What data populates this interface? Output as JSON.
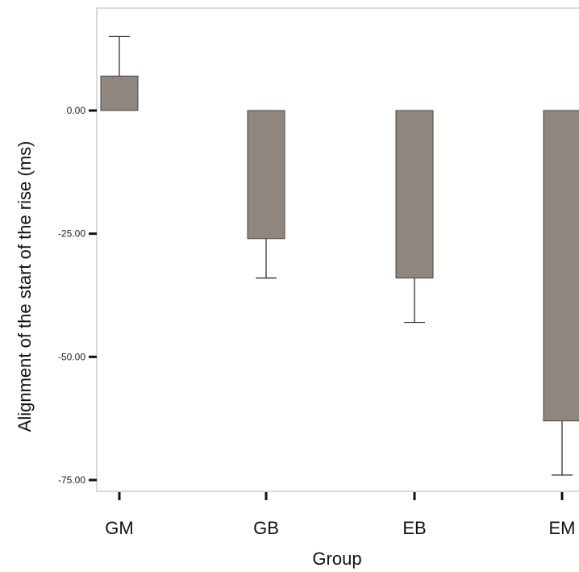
{
  "chart_data": {
    "type": "bar",
    "title": "",
    "xlabel": "Group",
    "ylabel": "Alignment of the start of the rise (ms)",
    "categories": [
      "GM",
      "GB",
      "EB",
      "EM"
    ],
    "values": [
      7,
      -26,
      -34,
      -63
    ],
    "error_bars": [
      8,
      8,
      9,
      11
    ],
    "yticks": [
      0,
      -25,
      -50,
      -75
    ],
    "ytick_labels": [
      "0.00",
      "-25.00",
      "-50.00",
      "-75.00"
    ],
    "ylim": [
      -77,
      21
    ],
    "grid": false,
    "legend": "none",
    "colors": {
      "bar_fill": "#8f877f",
      "bar_stroke": "#4a4540",
      "axis": "#111111",
      "frame": "#b5b5b5"
    }
  }
}
